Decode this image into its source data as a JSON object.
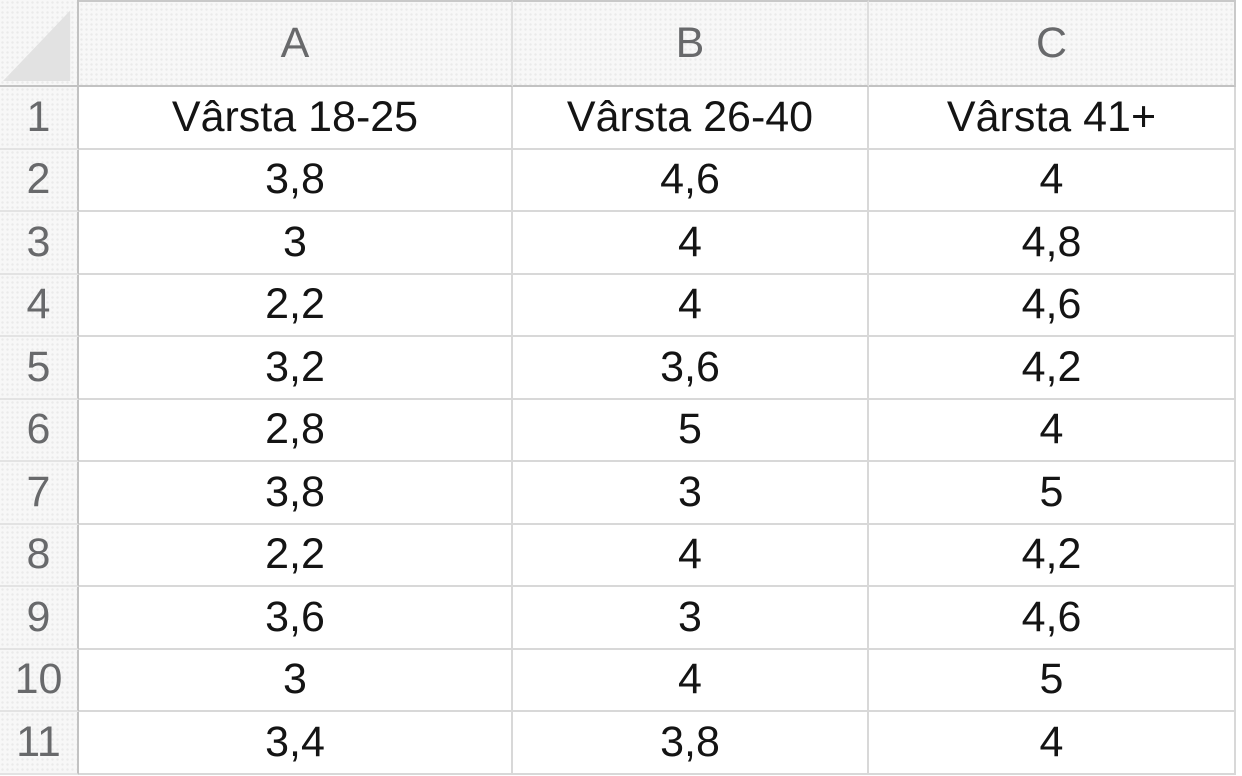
{
  "columns": [
    "A",
    "B",
    "C"
  ],
  "row_numbers": [
    "1",
    "2",
    "3",
    "4",
    "5",
    "6",
    "7",
    "8",
    "9",
    "10",
    "11"
  ],
  "rows": [
    [
      "Vârsta 18-25",
      "Vârsta 26-40",
      "Vârsta 41+"
    ],
    [
      "3,8",
      "4,6",
      "4"
    ],
    [
      "3",
      "4",
      "4,8"
    ],
    [
      "2,2",
      "4",
      "4,6"
    ],
    [
      "3,2",
      "3,6",
      "4,2"
    ],
    [
      "2,8",
      "5",
      "4"
    ],
    [
      "3,8",
      "3",
      "5"
    ],
    [
      "2,2",
      "4",
      "4,2"
    ],
    [
      "3,6",
      "3",
      "4,6"
    ],
    [
      "3",
      "4",
      "5"
    ],
    [
      "3,4",
      "3,8",
      "4"
    ]
  ],
  "icons": {
    "select_all_triangle": "triangle-lower-left-filled"
  },
  "colors": {
    "header_bg": "#f7f7f7",
    "header_text": "#68696b",
    "cell_text": "#141414",
    "grid_line_body": "#d8d8d8",
    "grid_line_header": "#c2c2c2",
    "gutter_row_line": "#e3e3e3",
    "corner_triangle": "#e2e2e2",
    "cell_bg": "#ffffff"
  }
}
